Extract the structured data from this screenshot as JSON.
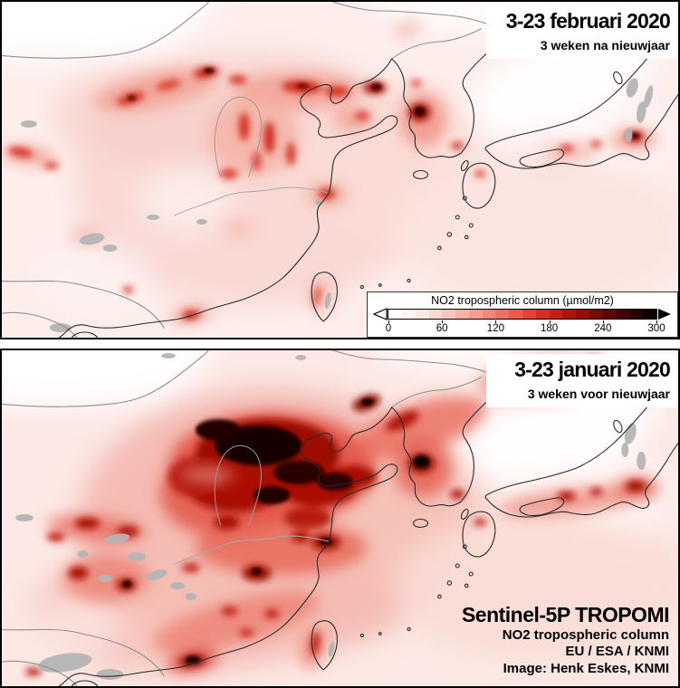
{
  "panels": [
    {
      "id": "february",
      "title": "3-23 februari 2020",
      "subtitle": "3 weken na nieuwjaar"
    },
    {
      "id": "january",
      "title": "3-23 januari 2020",
      "subtitle": "3 weken voor nieuwjaar"
    }
  ],
  "colorbar": {
    "title": "NO2 tropospheric column (µmol/m2)",
    "unit": "µmol/m2",
    "min": 0,
    "max": 300,
    "ticks": [
      "0",
      "60",
      "120",
      "180",
      "240",
      "300"
    ],
    "steps": [
      "#ffffff",
      "#fdf3f1",
      "#fce7e3",
      "#fbd9d3",
      "#f9c6be",
      "#f7b2a7",
      "#f49d90",
      "#f1897a",
      "#ee7263",
      "#e95b4c",
      "#e14336",
      "#d32f22",
      "#c12015",
      "#ab150b",
      "#920e06",
      "#770903",
      "#5c0502",
      "#420302",
      "#290101",
      "#0f0000"
    ]
  },
  "credits": {
    "mission": "Sentinel-5P TROPOMI",
    "product": "NO2 tropospheric column",
    "organisations": "EU / ESA / KNMI",
    "image_credit": "Image: Henk Eskes, KNMI"
  }
}
